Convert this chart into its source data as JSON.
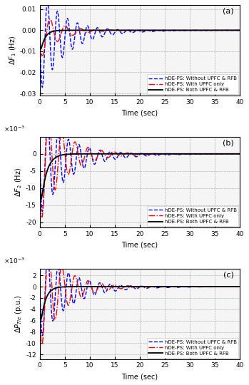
{
  "subplots": [
    "(a)",
    "(b)",
    "(c)"
  ],
  "xlim": [
    0,
    40
  ],
  "xticks": [
    0,
    5,
    10,
    15,
    20,
    25,
    30,
    35,
    40
  ],
  "xlabel": "Time (sec)",
  "legend_labels": [
    "hDE-PS: Without UPFC & RFB",
    "hDE-PS: With UPFC only",
    "hDE-PS: Both UPFC & RFB"
  ],
  "ylabels": [
    "$\\Delta F_1$ (Hz)",
    "$\\Delta F_2$ (Hz)",
    "$\\Delta P_{Tie}$ (p.u.)"
  ],
  "background_color": "#f5f5f5",
  "subplot_a": {
    "ylim": [
      -0.031,
      0.012
    ],
    "yticks": [
      -0.03,
      -0.02,
      -0.01,
      0.0,
      0.01
    ],
    "blue": {
      "amp1": -0.025,
      "decay1": 0.2,
      "freq1": 0.5,
      "phase1": -0.15,
      "amp2": -0.005,
      "decay2": 0.12
    },
    "red": {
      "amp1": -0.012,
      "decay1": 0.28,
      "freq1": 0.33,
      "phase1": 0.35,
      "amp2": -0.002,
      "decay2": 0.2
    },
    "black": {
      "amp": -0.013,
      "decay": 1.2,
      "rise": 10.0
    }
  },
  "subplot_b": {
    "ylim": [
      -0.0215,
      0.005
    ],
    "yticks": [
      -0.02,
      -0.015,
      -0.01,
      -0.005,
      0.0
    ],
    "scale": 0.001,
    "blue": {
      "amp1": -16.0,
      "decay1": 0.18,
      "freq1": 0.48,
      "phase1": -0.1,
      "amp2": -2.5,
      "decay2": 0.1
    },
    "red": {
      "amp1": -19.0,
      "decay1": 0.22,
      "freq1": 0.38,
      "phase1": 0.4,
      "amp2": -1.5,
      "decay2": 0.15
    },
    "black": {
      "amp": -19.0,
      "decay": 0.9,
      "rise": 8.0
    }
  },
  "subplot_c": {
    "ylim": [
      -0.0128,
      0.0032
    ],
    "yticks": [
      -0.012,
      -0.01,
      -0.008,
      -0.006,
      -0.004,
      -0.002,
      0.0,
      0.002
    ],
    "scale": 0.001,
    "blue": {
      "amp1": -8.5,
      "decay1": 0.18,
      "freq1": 0.48,
      "phase1": -0.1,
      "amp2": -1.0,
      "decay2": 0.1
    },
    "red": {
      "amp1": -10.5,
      "decay1": 0.22,
      "freq1": 0.38,
      "phase1": 0.4,
      "amp2": -0.8,
      "decay2": 0.15
    },
    "black": {
      "amp": -8.5,
      "decay": 1.1,
      "rise": 9.0
    }
  }
}
